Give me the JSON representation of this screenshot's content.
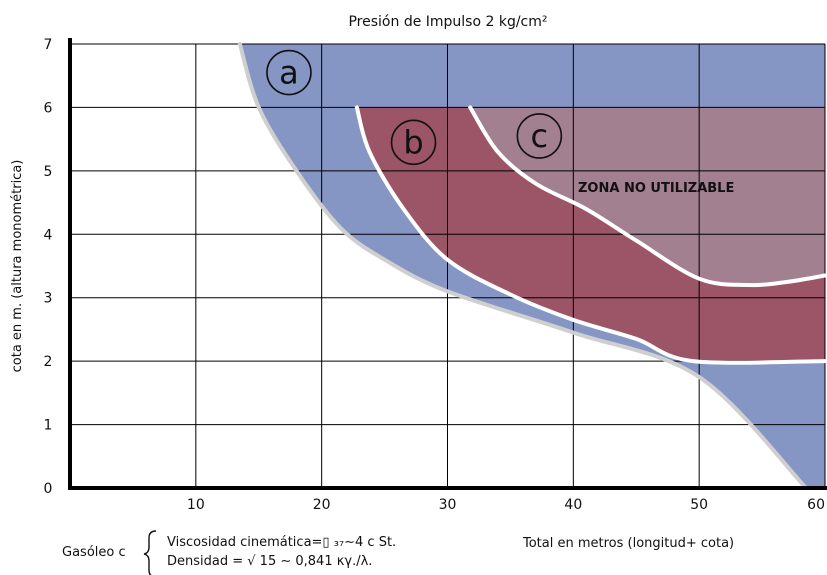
{
  "chart_data": {
    "type": "area",
    "title": "Presión de Impulso 2 kg/cm²",
    "xlabel": "Total en metros (longitud+ cota)",
    "ylabel": "cota en m. (altura monométrica)",
    "xlim": [
      0,
      60
    ],
    "ylim": [
      0,
      7
    ],
    "x_ticks": [
      "10",
      "20",
      "30",
      "40",
      "50",
      "60"
    ],
    "y_ticks": [
      "0",
      "1",
      "2",
      "3",
      "4",
      "5",
      "6",
      "7"
    ],
    "grid": true,
    "regions": [
      {
        "label": "a",
        "color": "#8696c4",
        "upper_boundary": [
          [
            13.5,
            7
          ],
          [
            60,
            7
          ]
        ],
        "lower_boundary": [
          [
            13.5,
            7
          ],
          [
            15,
            6
          ],
          [
            18,
            5
          ],
          [
            21.5,
            4.1
          ],
          [
            25,
            3.6
          ],
          [
            30,
            3.1
          ],
          [
            40,
            2.45
          ],
          [
            50,
            1.75
          ],
          [
            58.5,
            0
          ]
        ]
      },
      {
        "label": "b",
        "color": "#9c5467",
        "upper_boundary": [
          [
            22.8,
            6
          ],
          [
            60,
            6
          ]
        ],
        "lower_boundary": [
          [
            22.8,
            6
          ],
          [
            23.8,
            5.3
          ],
          [
            26.5,
            4.4
          ],
          [
            30,
            3.6
          ],
          [
            35,
            3.05
          ],
          [
            40,
            2.65
          ],
          [
            45,
            2.35
          ],
          [
            49.5,
            2.0
          ],
          [
            60,
            2.0
          ]
        ]
      },
      {
        "label": "c",
        "color": "#a2808f",
        "upper_boundary": [
          [
            31.8,
            6
          ],
          [
            60,
            6
          ]
        ],
        "lower_boundary": [
          [
            31.8,
            6
          ],
          [
            34,
            5.3
          ],
          [
            37,
            4.8
          ],
          [
            41,
            4.4
          ],
          [
            45,
            3.9
          ],
          [
            50,
            3.3
          ],
          [
            54,
            3.2
          ],
          [
            57,
            3.25
          ],
          [
            60,
            3.35
          ]
        ]
      }
    ],
    "annotations": [
      "ZONA NO UTILIZABLE"
    ],
    "fluid_note": {
      "label": "Gasóleo c",
      "line1": "Viscosidad cinemática=▯ ₃₇∼4 c St.",
      "line2": "Densidad = √ 15 ∼ 0,841 κγ./λ."
    }
  },
  "colors": {
    "region_a": "#8696c4",
    "region_b": "#9c5467",
    "region_c": "#a2808f",
    "boundary_white": "#ffffff",
    "boundary_gray": "#cfcfcf",
    "grid": "#000000"
  }
}
